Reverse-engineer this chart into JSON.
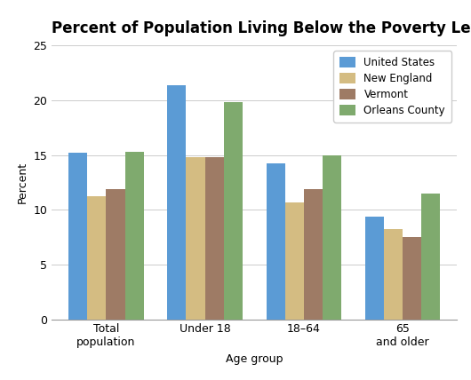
{
  "title": "Percent of Population Living Below the Poverty Level",
  "xlabel": "Age group",
  "ylabel": "Percent",
  "categories": [
    "Total\npopulation",
    "Under 18",
    "18–64",
    "65\nand older"
  ],
  "series": {
    "United States": [
      15.2,
      21.4,
      14.2,
      9.4
    ],
    "New England": [
      11.2,
      14.8,
      10.7,
      8.2
    ],
    "Vermont": [
      11.9,
      14.8,
      11.9,
      7.5
    ],
    "Orleans County": [
      15.3,
      19.8,
      15.0,
      11.5
    ]
  },
  "colors": {
    "United States": "#5b9bd5",
    "New England": "#d4bc82",
    "Vermont": "#9e7b65",
    "Orleans County": "#7faa6e"
  },
  "ylim": [
    0,
    25
  ],
  "yticks": [
    0,
    5,
    10,
    15,
    20,
    25
  ],
  "legend_loc": "upper right",
  "background_color": "#ffffff",
  "title_fontsize": 12,
  "axis_fontsize": 9,
  "tick_fontsize": 9,
  "legend_fontsize": 8.5,
  "bar_width": 0.19
}
